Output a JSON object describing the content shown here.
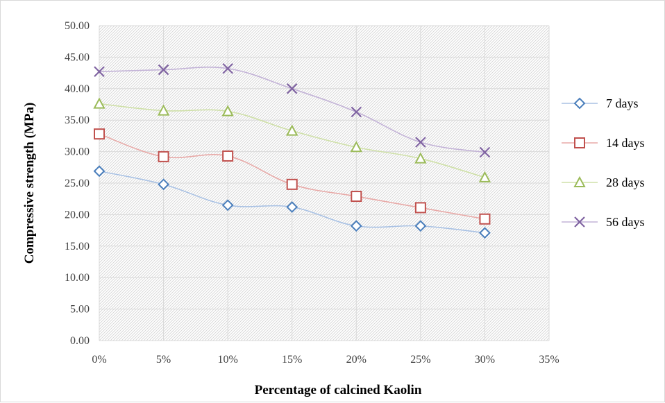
{
  "chart_data": {
    "type": "line",
    "title": "",
    "xlabel": "Percentage of calcined Kaolin",
    "ylabel": "Compressive strength (MPa)",
    "x_ticks": [
      "0%",
      "5%",
      "10%",
      "15%",
      "20%",
      "25%",
      "30%",
      "35%"
    ],
    "x": [
      0,
      5,
      10,
      15,
      20,
      25,
      30
    ],
    "xlim": [
      0,
      35
    ],
    "ylim": [
      0,
      50
    ],
    "y_ticks": [
      "0.00",
      "5.00",
      "10.00",
      "15.00",
      "20.00",
      "25.00",
      "30.00",
      "35.00",
      "40.00",
      "45.00",
      "50.00"
    ],
    "grid": true,
    "legend_position": "right",
    "series": [
      {
        "name": "7 days",
        "marker": "diamond",
        "color": "#4a7ebb",
        "line_color": "#a8c1e4",
        "values": [
          26.9,
          24.8,
          21.5,
          21.2,
          18.2,
          18.2,
          17.1
        ]
      },
      {
        "name": "14 days",
        "marker": "square",
        "color": "#c0504d",
        "line_color": "#e8a9a7",
        "values": [
          32.8,
          29.2,
          29.3,
          24.8,
          22.9,
          21.1,
          19.3
        ]
      },
      {
        "name": "28 days",
        "marker": "triangle",
        "color": "#9bbb59",
        "line_color": "#cfe0a8",
        "values": [
          37.6,
          36.5,
          36.4,
          33.3,
          30.7,
          28.9,
          25.9
        ]
      },
      {
        "name": "56 days",
        "marker": "x",
        "color": "#8064a2",
        "line_color": "#c3b3d7",
        "values": [
          42.7,
          43.0,
          43.2,
          40.0,
          36.3,
          31.5,
          29.9
        ]
      }
    ]
  }
}
